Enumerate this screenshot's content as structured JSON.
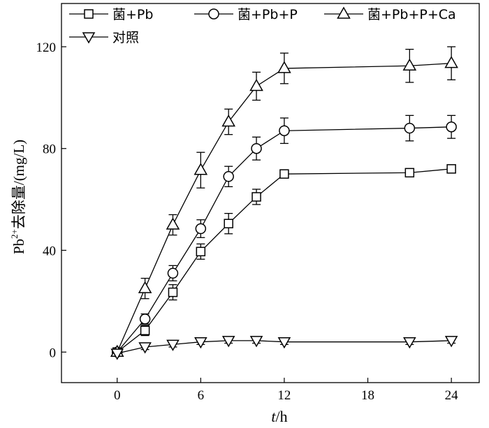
{
  "chart_data": {
    "type": "line",
    "xlabel_italic": "t",
    "xlabel_rest": "/h",
    "ylabel_main": "Pb",
    "ylabel_sup": "2+",
    "ylabel_rest": "去除量/(mg/L)",
    "xlim": [
      -4,
      26
    ],
    "ylim": [
      -12,
      137
    ],
    "xticks": [
      0,
      6,
      12,
      18,
      24
    ],
    "yticks": [
      0,
      40,
      80,
      120
    ],
    "grid": false,
    "legend_position": "top",
    "series": [
      {
        "name": "菌+Pb",
        "marker": "square",
        "x": [
          0,
          2,
          4,
          6,
          8,
          10,
          12,
          21,
          24
        ],
        "y": [
          0,
          8.5,
          23.5,
          39.5,
          50.5,
          61,
          70,
          70.5,
          72
        ],
        "err": [
          0,
          2,
          3,
          3,
          4,
          3,
          1,
          1,
          1.5
        ]
      },
      {
        "name": "菌+Pb+P",
        "marker": "circle",
        "x": [
          0,
          2,
          4,
          6,
          8,
          10,
          12,
          21,
          24
        ],
        "y": [
          0,
          13,
          31,
          48.5,
          69,
          80,
          87,
          88,
          88.5
        ],
        "err": [
          0,
          2,
          3,
          3.5,
          4,
          4.5,
          5,
          5,
          4.5
        ]
      },
      {
        "name": "菌+Pb+P+Ca",
        "marker": "triangle-up",
        "x": [
          0,
          2,
          4,
          6,
          8,
          10,
          12,
          21,
          24
        ],
        "y": [
          0,
          25,
          50,
          71.5,
          90.5,
          104.5,
          111.5,
          112.5,
          113.5
        ],
        "err": [
          0,
          4,
          4,
          7,
          5,
          5.5,
          6,
          6.5,
          6.5
        ]
      },
      {
        "name": "对照",
        "marker": "triangle-down",
        "x": [
          0,
          2,
          4,
          6,
          8,
          10,
          12,
          21,
          24
        ],
        "y": [
          -0.5,
          2,
          3,
          4,
          4.5,
          4.5,
          4,
          4,
          4.5
        ],
        "err": [
          0,
          1,
          1,
          1,
          1,
          1,
          1,
          1,
          1
        ]
      }
    ]
  }
}
